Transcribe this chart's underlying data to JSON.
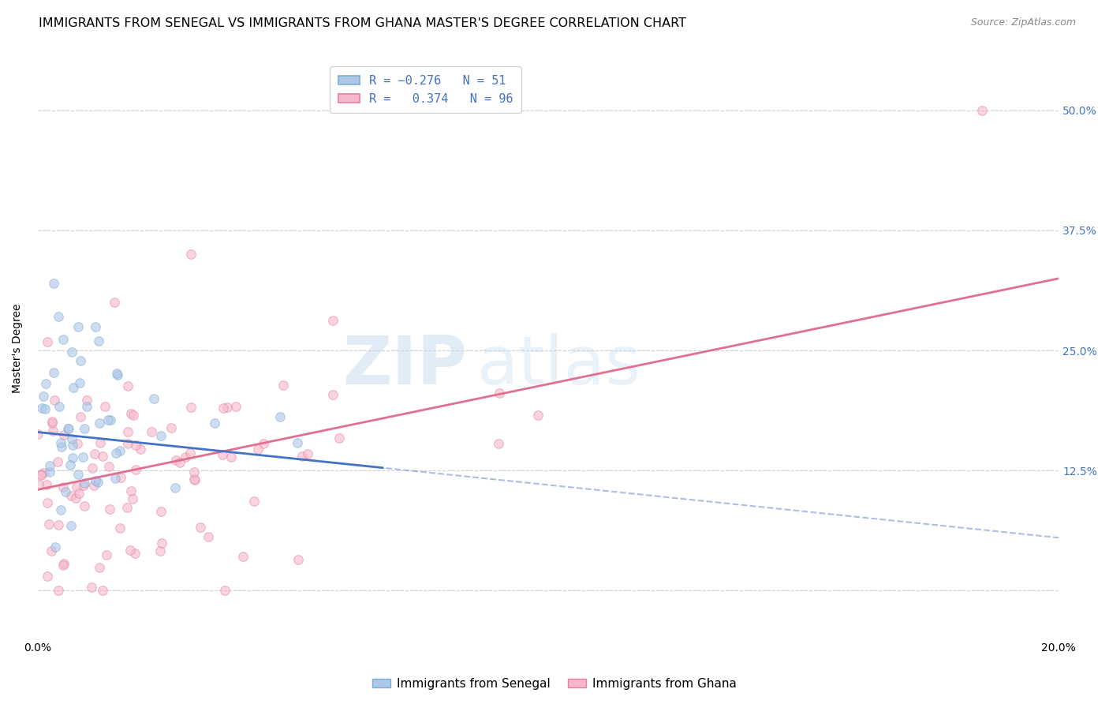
{
  "title": "IMMIGRANTS FROM SENEGAL VS IMMIGRANTS FROM GHANA MASTER'S DEGREE CORRELATION CHART",
  "source": "Source: ZipAtlas.com",
  "ylabel": "Master's Degree",
  "y_ticks": [
    0.0,
    0.125,
    0.25,
    0.375,
    0.5
  ],
  "y_tick_labels": [
    "",
    "12.5%",
    "25.0%",
    "37.5%",
    "50.0%"
  ],
  "x_min": 0.0,
  "x_max": 0.2,
  "y_min": -0.05,
  "y_max": 0.555,
  "senegal_color": "#aec6e8",
  "ghana_color": "#f5b8cb",
  "senegal_edge": "#7aafd4",
  "ghana_edge": "#e87fa0",
  "senegal_line_color": "#4472c4",
  "ghana_line_color": "#e07090",
  "senegal_R": -0.276,
  "senegal_N": 51,
  "ghana_R": 0.374,
  "ghana_N": 96,
  "legend_senegal_label": "Immigrants from Senegal",
  "legend_ghana_label": "Immigrants from Ghana",
  "watermark_zip": "ZIP",
  "watermark_atlas": "atlas",
  "background_color": "#ffffff",
  "grid_color": "#cccccc",
  "tick_label_color": "#4472c4",
  "title_fontsize": 11.5,
  "source_fontsize": 9,
  "axis_label_fontsize": 10,
  "tick_fontsize": 10,
  "legend_fontsize": 11,
  "marker_size": 70,
  "marker_alpha": 0.6,
  "senegal_line_intercept": 0.165,
  "senegal_line_slope": -0.55,
  "ghana_line_intercept": 0.105,
  "ghana_line_slope": 1.1
}
